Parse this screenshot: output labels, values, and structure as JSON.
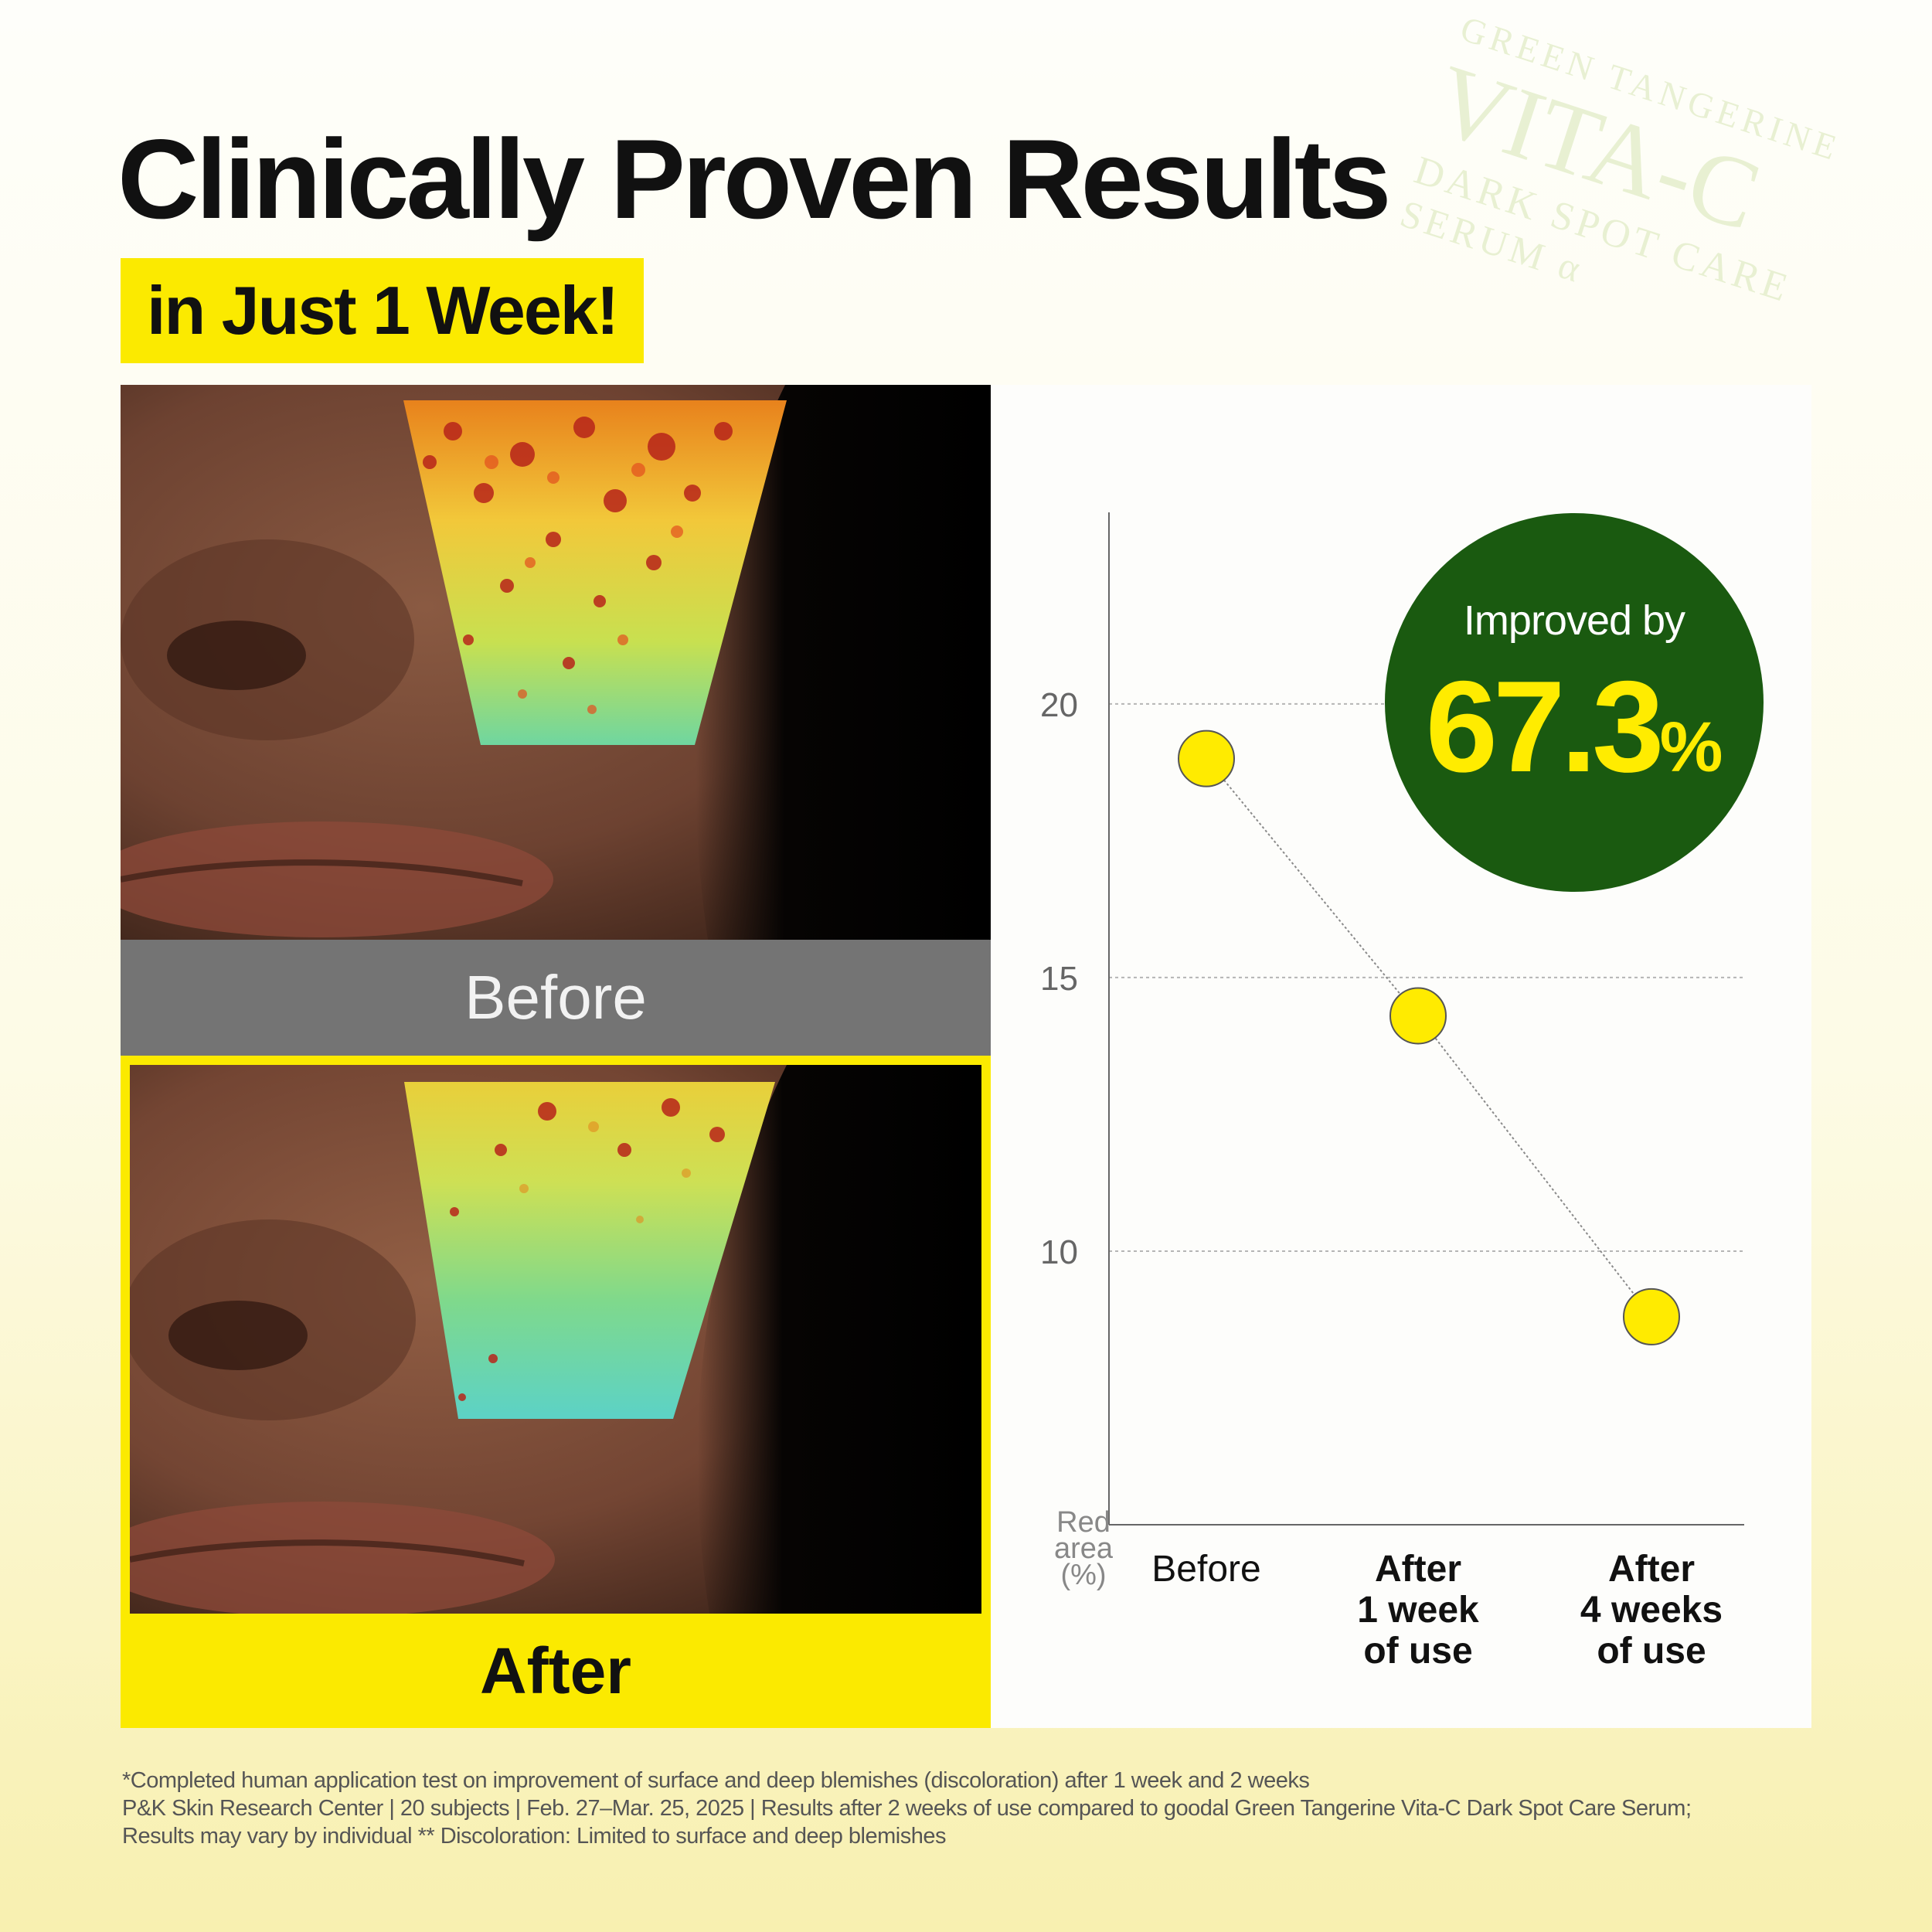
{
  "title": "Clinically Proven Results",
  "subtitle": "in Just 1 Week!",
  "watermark": {
    "line1": "GREEN TANGERINE",
    "line2": "VITA-C",
    "line3": "DARK SPOT CARE",
    "line4": "SERUM α"
  },
  "photos": {
    "before_label": "Before",
    "after_label": "After"
  },
  "badge": {
    "text": "Improved by",
    "value": "67.3",
    "unit": "%"
  },
  "chart_data": {
    "type": "line",
    "categories": [
      "Before",
      "After 1 week of use",
      "After 4 weeks of use"
    ],
    "category_lines": [
      [
        "Before"
      ],
      [
        "After",
        "1 week",
        "of use"
      ],
      [
        "After",
        "4 weeks",
        "of use"
      ]
    ],
    "values": [
      19.0,
      14.3,
      8.8
    ],
    "ylabel_lines": [
      "Red",
      "area",
      "(%)"
    ],
    "y_ticks": [
      10,
      15,
      20
    ],
    "ylim": [
      5,
      23.5
    ],
    "grid": true,
    "marker_color": "#ffeb00",
    "line_color": "#8a8a8a"
  },
  "colors": {
    "accent_yellow": "#fbea00",
    "badge_green": "#1a5a10",
    "before_bar": "#747474"
  },
  "footnote": [
    "*Completed human application test on improvement of surface and deep blemishes (discoloration) after 1 week and 2 weeks",
    "P&K Skin Research Center | 20 subjects | Feb. 27–Mar. 25, 2025 | Results after 2 weeks of use compared to goodal Green Tangerine Vita-C Dark Spot Care Serum;",
    "Results may vary by individual ** Discoloration: Limited to surface and deep blemishes"
  ]
}
